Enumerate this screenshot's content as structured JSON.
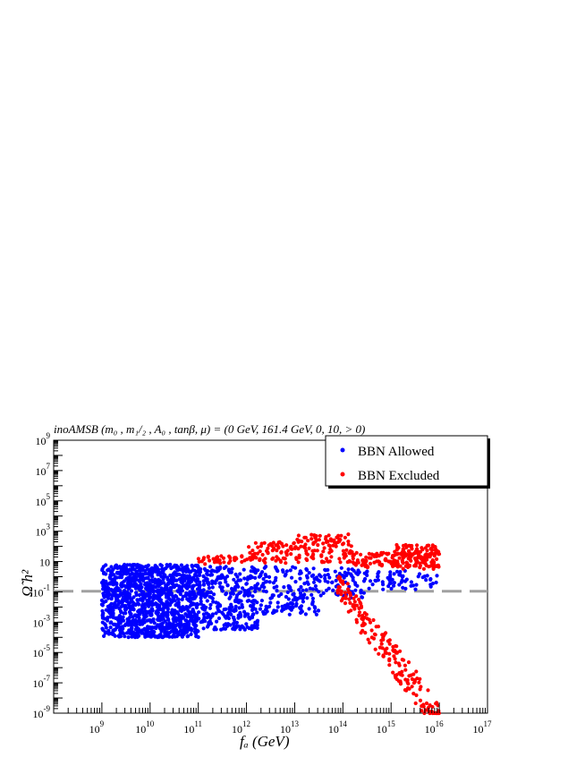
{
  "chart_data": {
    "type": "scatter",
    "title": "inoAMSB (m₀ , m₁/₂ , A₀ , tanβ, μ) = (0 GeV, 161.4 GeV, 0, 10, > 0)",
    "xlabel": "fₐ (GeV)",
    "ylabel": "Ω̃ h²",
    "x_scale": "log",
    "y_scale": "log",
    "xlim": [
      100000000.0,
      1e+17
    ],
    "ylim": [
      1e-09,
      1000000000.0
    ],
    "x_ticks": [
      {
        "value": 1000000000.0,
        "base": "10",
        "exp": "9"
      },
      {
        "value": 10000000000.0,
        "base": "10",
        "exp": "10"
      },
      {
        "value": 100000000000.0,
        "base": "10",
        "exp": "11"
      },
      {
        "value": 1000000000000.0,
        "base": "10",
        "exp": "12"
      },
      {
        "value": 10000000000000.0,
        "base": "10",
        "exp": "13"
      },
      {
        "value": 100000000000000.0,
        "base": "10",
        "exp": "14"
      },
      {
        "value": 1000000000000000.0,
        "base": "10",
        "exp": "15"
      },
      {
        "value": 1e+16,
        "base": "10",
        "exp": "16"
      },
      {
        "value": 1e+17,
        "base": "10",
        "exp": "17"
      }
    ],
    "y_ticks": [
      {
        "value": 1e-09,
        "base": "10",
        "exp": "-9"
      },
      {
        "value": 1e-07,
        "base": "10",
        "exp": "-7"
      },
      {
        "value": 1e-05,
        "base": "10",
        "exp": "-5"
      },
      {
        "value": 0.001,
        "base": "10",
        "exp": "-3"
      },
      {
        "value": 0.1,
        "base": "10",
        "exp": "-1"
      },
      {
        "value": 10,
        "base": "10",
        "exp": ""
      },
      {
        "value": 1000.0,
        "base": "10",
        "exp": "3"
      },
      {
        "value": 100000.0,
        "base": "10",
        "exp": "5"
      },
      {
        "value": 10000000.0,
        "base": "10",
        "exp": "7"
      },
      {
        "value": 1000000000.0,
        "base": "10",
        "exp": "9"
      }
    ],
    "reference_line": {
      "y": 0.11,
      "style": "dashed",
      "color": "#a0a0a0"
    },
    "legend": {
      "placement": "top-right",
      "entries": [
        {
          "name": "BBN Allowed",
          "color": "#0000ff"
        },
        {
          "name": "BBN Excluded",
          "color": "#ff0000"
        }
      ]
    },
    "series": [
      {
        "name": "BBN Allowed",
        "color": "#0000ff",
        "regions": [
          {
            "x_log": [
              9.0,
              11.0
            ],
            "y_log": [
              -4.0,
              0.8
            ],
            "count": 1200
          },
          {
            "x_log": [
              11.0,
              12.3
            ],
            "y_log": [
              -3.5,
              0.7
            ],
            "count": 320
          },
          {
            "x_log": [
              12.3,
              13.5
            ],
            "y_log": [
              -2.5,
              0.7
            ],
            "count": 150
          },
          {
            "x_log": [
              13.5,
              14.5
            ],
            "y_log": [
              -1.4,
              0.6
            ],
            "count": 70
          },
          {
            "x_log": [
              14.5,
              16.0
            ],
            "y_log": [
              -0.9,
              0.4
            ],
            "count": 60
          }
        ]
      },
      {
        "name": "BBN Excluded",
        "color": "#ff0000",
        "regions": [
          {
            "x_log": [
              11.0,
              12.0
            ],
            "y_log": [
              0.8,
              1.4
            ],
            "count": 35
          },
          {
            "x_log": [
              12.0,
              13.0
            ],
            "y_log": [
              0.9,
              2.3
            ],
            "count": 70
          },
          {
            "x_log": [
              13.0,
              14.2
            ],
            "y_log": [
              0.9,
              2.8
            ],
            "count": 110
          },
          {
            "x_log": [
              14.2,
              15.0
            ],
            "y_log": [
              0.6,
              1.6
            ],
            "count": 60
          },
          {
            "x_log": [
              15.0,
              16.0
            ],
            "y_log": [
              0.5,
              2.1
            ],
            "count": 160
          },
          {
            "x_log": [
              13.8,
              16.0
            ],
            "y_log": [
              -9.0,
              0.0
            ],
            "count": 190,
            "shape": "falling-band"
          }
        ]
      }
    ]
  }
}
